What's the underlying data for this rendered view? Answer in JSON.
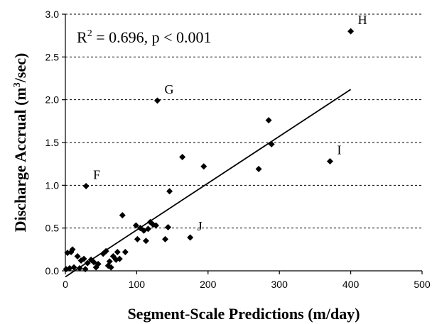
{
  "chart_data": {
    "type": "scatter",
    "xlabel": "Segment-Scale Predictions (m/day)",
    "ylabel_main": "Discharge Accrual (m",
    "ylabel_sup": "3",
    "ylabel_end": "/sec)",
    "xlim": [
      0,
      500
    ],
    "ylim": [
      0,
      3.0
    ],
    "xticks": [
      "0",
      "100",
      "200",
      "300",
      "400",
      "500"
    ],
    "yticks": [
      "0.0",
      "0.5",
      "1.0",
      "1.5",
      "2.0",
      "2.5",
      "3.0"
    ],
    "xtick_values": [
      0,
      100,
      200,
      300,
      400,
      500
    ],
    "ytick_values": [
      0,
      0.5,
      1.0,
      1.5,
      2.0,
      2.5,
      3.0
    ],
    "grid": "horizontal-dashed",
    "annotation": {
      "r": "R",
      "sup": "2",
      "rest": " = 0.696, p < 0.001"
    },
    "fit_line": {
      "x": [
        0,
        400
      ],
      "y": [
        -0.07,
        2.12
      ]
    },
    "points": [
      {
        "x": 1,
        "y": 0.02
      },
      {
        "x": 3,
        "y": 0.21
      },
      {
        "x": 6,
        "y": 0.03
      },
      {
        "x": 8,
        "y": 0.22
      },
      {
        "x": 10,
        "y": 0.25
      },
      {
        "x": 12,
        "y": 0.04
      },
      {
        "x": 17,
        "y": 0.17
      },
      {
        "x": 20,
        "y": 0.03
      },
      {
        "x": 22,
        "y": 0.12
      },
      {
        "x": 26,
        "y": 0.14
      },
      {
        "x": 28,
        "y": 0.02
      },
      {
        "x": 31,
        "y": 0.09
      },
      {
        "x": 36,
        "y": 0.13
      },
      {
        "x": 40,
        "y": 0.1
      },
      {
        "x": 43,
        "y": 0.04
      },
      {
        "x": 46,
        "y": 0.08
      },
      {
        "x": 53,
        "y": 0.2
      },
      {
        "x": 57,
        "y": 0.23
      },
      {
        "x": 60,
        "y": 0.06
      },
      {
        "x": 62,
        "y": 0.11
      },
      {
        "x": 64,
        "y": 0.04
      },
      {
        "x": 67,
        "y": 0.17
      },
      {
        "x": 71,
        "y": 0.13
      },
      {
        "x": 73,
        "y": 0.22
      },
      {
        "x": 76,
        "y": 0.14
      },
      {
        "x": 80,
        "y": 0.65
      },
      {
        "x": 84,
        "y": 0.22
      },
      {
        "x": 99,
        "y": 0.53
      },
      {
        "x": 101,
        "y": 0.37
      },
      {
        "x": 105,
        "y": 0.5
      },
      {
        "x": 110,
        "y": 0.47
      },
      {
        "x": 113,
        "y": 0.35
      },
      {
        "x": 116,
        "y": 0.49
      },
      {
        "x": 119,
        "y": 0.57
      },
      {
        "x": 123,
        "y": 0.54
      },
      {
        "x": 127,
        "y": 0.53
      },
      {
        "x": 129,
        "y": 1.99,
        "label": "G"
      },
      {
        "x": 140,
        "y": 0.37
      },
      {
        "x": 144,
        "y": 0.51
      },
      {
        "x": 146,
        "y": 0.93
      },
      {
        "x": 164,
        "y": 1.33
      },
      {
        "x": 175,
        "y": 0.39,
        "label": "J"
      },
      {
        "x": 194,
        "y": 1.22
      },
      {
        "x": 271,
        "y": 1.19
      },
      {
        "x": 285,
        "y": 1.76
      },
      {
        "x": 289,
        "y": 1.48
      },
      {
        "x": 29,
        "y": 0.99,
        "label": "F"
      },
      {
        "x": 371,
        "y": 1.28,
        "label": "I"
      },
      {
        "x": 400,
        "y": 2.8,
        "label": "H"
      }
    ]
  }
}
